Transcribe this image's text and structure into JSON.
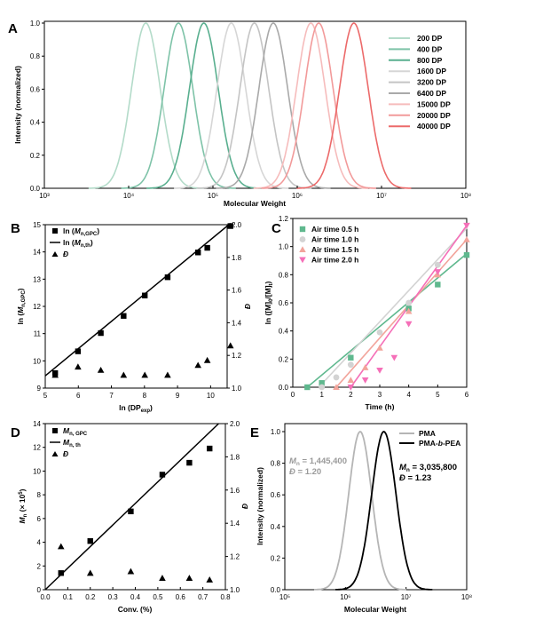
{
  "chart_data": [
    {
      "id": "A",
      "panel_label": "A",
      "type": "line",
      "xlabel": "Molecular Weight",
      "ylabel": "Intensity (normalized)",
      "x_scale": "log",
      "xlim": [
        1000,
        100000000
      ],
      "ylim": [
        0,
        1.0
      ],
      "x_tick_labels": [
        "10³",
        "10⁴",
        "10⁵",
        "10⁶",
        "10⁷",
        "10⁸"
      ],
      "y_tick_labels": [
        "0.0",
        "0.2",
        "0.4",
        "0.6",
        "0.8",
        "1.0"
      ],
      "legend_position": "right",
      "series": [
        {
          "name": "200 DP",
          "peak_mw": 16000,
          "color": "#b3dbc9"
        },
        {
          "name": "400 DP",
          "peak_mw": 39000,
          "color": "#7ec3a8"
        },
        {
          "name": "800 DP",
          "peak_mw": 78000,
          "color": "#59af8f"
        },
        {
          "name": "1600 DP",
          "peak_mw": 165000,
          "color": "#d6d6d6"
        },
        {
          "name": "3200 DP",
          "peak_mw": 310000,
          "color": "#c4c4c4"
        },
        {
          "name": "6400 DP",
          "peak_mw": 520000,
          "color": "#a9a9a9"
        },
        {
          "name": "15000 DP",
          "peak_mw": 1450000,
          "color": "#f6bcbc"
        },
        {
          "name": "20000 DP",
          "peak_mw": 1800000,
          "color": "#f29a9a"
        },
        {
          "name": "40000 DP",
          "peak_mw": 4700000,
          "color": "#ec6a6a"
        }
      ]
    },
    {
      "id": "B",
      "panel_label": "B",
      "type": "scatter",
      "xlabel_main": "ln (DP",
      "xlabel_sub": "exp",
      "xlabel_end": ")",
      "ylabel_main": "ln (",
      "ylabel_mid": "M",
      "ylabel_sub": "n,GPC",
      "ylabel_end": ")",
      "y2label": "Đ",
      "xlim": [
        5,
        10.5
      ],
      "ylim": [
        9,
        15
      ],
      "y2lim": [
        1.0,
        2.0
      ],
      "x_tick_labels": [
        "5",
        "6",
        "7",
        "8",
        "9",
        "10"
      ],
      "y_tick_labels": [
        "9",
        "10",
        "11",
        "12",
        "13",
        "14",
        "15"
      ],
      "y2_tick_labels": [
        "1.0",
        "1.2",
        "1.4",
        "1.6",
        "1.8",
        "2.0"
      ],
      "legend": [
        {
          "main": "ln (",
          "mid": "M",
          "sub": "n,GPC",
          "end": ")",
          "marker": "square"
        },
        {
          "main": "ln (",
          "mid": "M",
          "sub": "n,th",
          "end": ")",
          "marker": "line"
        },
        {
          "main": "",
          "mid": "Đ",
          "sub": "",
          "end": "",
          "marker": "triangle"
        }
      ],
      "series": [
        {
          "name": "ln (Mn,GPC)",
          "x": [
            5.3,
            5.99,
            6.68,
            7.37,
            8.01,
            8.7,
            9.62,
            9.9,
            10.6
          ],
          "y": [
            9.55,
            10.35,
            11.02,
            11.65,
            12.4,
            13.07,
            13.98,
            14.15,
            14.95
          ]
        },
        {
          "name": "ln (Mn,th)",
          "x": [
            5.0,
            10.6
          ],
          "y": [
            9.45,
            15.05
          ]
        },
        {
          "name": "Đ",
          "x": [
            5.3,
            5.99,
            6.68,
            7.37,
            8.01,
            8.7,
            9.62,
            9.9,
            10.6
          ],
          "y2": [
            1.08,
            1.13,
            1.11,
            1.08,
            1.08,
            1.08,
            1.14,
            1.17,
            1.26
          ]
        }
      ]
    },
    {
      "id": "C",
      "panel_label": "C",
      "type": "scatter",
      "xlabel": "Time (h)",
      "ylabel_main": "ln ([M]",
      "ylabel_sub1": "0",
      "ylabel_mid": "/[M]",
      "ylabel_sub2": "t",
      "ylabel_end": ")",
      "xlim": [
        0,
        6
      ],
      "ylim": [
        0,
        1.2
      ],
      "x_tick_labels": [
        "0",
        "1",
        "2",
        "3",
        "4",
        "5",
        "6"
      ],
      "y_tick_labels": [
        "0.0",
        "0.2",
        "0.4",
        "0.6",
        "0.8",
        "1.0",
        "1.2"
      ],
      "legend_position": "top-left",
      "series": [
        {
          "name": "Air time 0.5 h",
          "marker": "square",
          "color": "#5fb88e",
          "x": [
            0.5,
            1.0,
            2.0,
            4.0,
            5.0,
            6.0
          ],
          "y": [
            0.0,
            0.03,
            0.21,
            0.56,
            0.73,
            0.94
          ],
          "fit": [
            [
              0.5,
              0.0
            ],
            [
              6.0,
              0.95
            ]
          ]
        },
        {
          "name": "Air time 1.0 h",
          "marker": "circle",
          "color": "#d3d3d3",
          "x": [
            1.0,
            1.5,
            2.0,
            3.0,
            4.0,
            5.0
          ],
          "y": [
            0.0,
            0.07,
            0.16,
            0.39,
            0.6,
            0.87
          ],
          "fit": [
            [
              0.9,
              0.0
            ],
            [
              6.0,
              1.13
            ]
          ]
        },
        {
          "name": "Air time 1.5 h",
          "marker": "triangle",
          "color": "#f2a49b",
          "x": [
            1.5,
            2.0,
            2.5,
            3.0,
            4.0,
            5.0,
            6.0
          ],
          "y": [
            0.0,
            0.05,
            0.14,
            0.28,
            0.54,
            0.8,
            1.05
          ],
          "fit": [
            [
              1.5,
              0.0
            ],
            [
              6.0,
              1.05
            ]
          ]
        },
        {
          "name": "Air time 2.0 h",
          "marker": "triangle-down",
          "color": "#f56fb8",
          "x": [
            2.0,
            2.5,
            3.0,
            3.5,
            4.0,
            5.0,
            6.0
          ],
          "y": [
            0.0,
            0.05,
            0.12,
            0.21,
            0.45,
            0.82,
            1.15
          ],
          "fit": [
            [
              2.0,
              0.0
            ],
            [
              6.0,
              1.15
            ]
          ]
        }
      ]
    },
    {
      "id": "D",
      "panel_label": "D",
      "type": "scatter",
      "xlabel": "Conv. (%)",
      "ylabel_main": "M",
      "ylabel_sub": "n",
      "ylabel_end": " (× 10",
      "ylabel_sup": "5",
      "ylabel_close": ")",
      "y2label": "Đ",
      "xlim": [
        0,
        0.8
      ],
      "ylim": [
        0,
        14
      ],
      "y2lim": [
        1.0,
        2.0
      ],
      "x_tick_labels": [
        "0.0",
        "0.1",
        "0.2",
        "0.3",
        "0.4",
        "0.5",
        "0.6",
        "0.7",
        "0.8"
      ],
      "y_tick_labels": [
        "0",
        "2",
        "4",
        "6",
        "8",
        "10",
        "12",
        "14"
      ],
      "y2_tick_labels": [
        "1.0",
        "1.2",
        "1.4",
        "1.6",
        "1.8",
        "2.0"
      ],
      "legend": [
        {
          "mid": "M",
          "sub": "n, GPC",
          "marker": "square"
        },
        {
          "mid": "M",
          "sub": "n, th",
          "marker": "line"
        },
        {
          "mid": "Đ",
          "sub": "",
          "marker": "triangle"
        }
      ],
      "series": [
        {
          "name": "Mn, GPC",
          "x": [
            0.07,
            0.2,
            0.38,
            0.52,
            0.64,
            0.73
          ],
          "y": [
            1.4,
            4.1,
            6.6,
            9.7,
            10.7,
            11.9
          ]
        },
        {
          "name": "Mn, th",
          "x": [
            0.0,
            0.77
          ],
          "y": [
            0.0,
            14.0
          ]
        },
        {
          "name": "Đ",
          "x": [
            0.07,
            0.2,
            0.38,
            0.52,
            0.64,
            0.73
          ],
          "y2": [
            1.26,
            1.1,
            1.11,
            1.07,
            1.07,
            1.06
          ]
        }
      ]
    },
    {
      "id": "E",
      "panel_label": "E",
      "type": "line",
      "xlabel": "Molecular Weight",
      "ylabel": "Intensity (normalized)",
      "x_scale": "log",
      "xlim": [
        100000,
        100000000
      ],
      "ylim": [
        0,
        1.0
      ],
      "x_tick_labels": [
        "10⁵",
        "10⁶",
        "10⁷",
        "10⁸"
      ],
      "y_tick_labels": [
        "0.0",
        "0.2",
        "0.4",
        "0.6",
        "0.8",
        "1.0"
      ],
      "legend_position": "top-right",
      "series": [
        {
          "name": "PMA",
          "color": "#b5b5b5",
          "peak_mw": 1750000
        },
        {
          "name_main": "PMA-",
          "name_ital": "b",
          "name_end": "-PEA",
          "color": "#000000",
          "peak_mw": 4300000
        }
      ],
      "annotations": [
        {
          "mn_label": "M",
          "mn_sub": "n",
          "mn_value": " = 1,445,400",
          "d_label": "Đ",
          "d_value": " = 1.20",
          "color": "#9a9a9a"
        },
        {
          "mn_label": "M",
          "mn_sub": "n",
          "mn_value": " = 3,035,800",
          "d_label": "Đ",
          "d_value": " = 1.23",
          "color": "#000000"
        }
      ]
    }
  ]
}
